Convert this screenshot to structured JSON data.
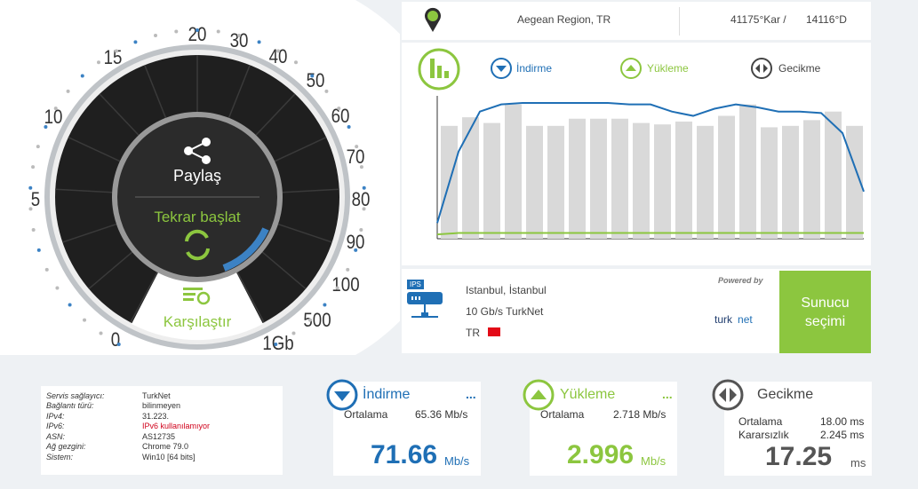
{
  "location": {
    "region": "Aegean Region, TR",
    "lat": "41175°Kar /",
    "lon": "14116°D"
  },
  "gauge": {
    "labels": [
      "0",
      "5",
      "10",
      "15",
      "20",
      "30",
      "40",
      "50",
      "60",
      "70",
      "80",
      "90",
      "100",
      "500",
      "1Gb"
    ],
    "share": "Paylaş",
    "restart": "Tekrar başlat",
    "compare": "Karşılaştır"
  },
  "legend": {
    "download": "İndirme",
    "upload": "Yükleme",
    "latency": "Gecikme"
  },
  "graph": {
    "ylim": [
      0,
      100
    ],
    "bars": [
      79,
      85,
      81,
      94,
      79,
      79,
      84,
      84,
      84,
      81,
      80,
      82,
      79,
      86,
      94,
      78,
      79,
      83,
      89,
      79
    ],
    "download": [
      11,
      61,
      89,
      94,
      95,
      95,
      95,
      95,
      95,
      94,
      94,
      89,
      86,
      91,
      94,
      92,
      89,
      89,
      88,
      74,
      33
    ],
    "upload": [
      3,
      4,
      4,
      4,
      4,
      4,
      4,
      4,
      4,
      4,
      4,
      4,
      4,
      4,
      4,
      4,
      4,
      4,
      4,
      4,
      4
    ]
  },
  "server": {
    "badge": "IPS",
    "city": "Istanbul, İstanbul",
    "provider": "10 Gb/s TurkNet",
    "country": "TR",
    "powered": "Powered by",
    "logo_a": "turk",
    "logo_b": "net",
    "button": "Sunucu seçimi"
  },
  "info": {
    "rows": [
      [
        "Servis sağlayıcı:",
        "TurkNet"
      ],
      [
        "Bağlantı türü:",
        "bilinmeyen"
      ],
      [
        "IPv4:",
        "31.223."
      ],
      [
        "IPv6:",
        "IPv6 kullanılamıyor"
      ],
      [
        "ASN:",
        "AS12735"
      ],
      [
        "Ağ gezgini:",
        "Chrome 79.0"
      ],
      [
        "Sistem:",
        "Win10 [64 bits]"
      ]
    ]
  },
  "results": {
    "download": {
      "title": "İndirme",
      "more": "...",
      "avg_label": "Ortalama",
      "avg": "65.36 Mb/s",
      "value": "71.66",
      "unit": "Mb/s"
    },
    "upload": {
      "title": "Yükleme",
      "more": "...",
      "avg_label": "Ortalama",
      "avg": "2.718 Mb/s",
      "value": "2.996",
      "unit": "Mb/s"
    },
    "latency": {
      "title": "Gecikme",
      "avg_label": "Ortalama",
      "avg": "18.00 ms",
      "jitter_label": "Kararsızlık",
      "jitter": "2.245 ms",
      "value": "17.25",
      "unit": "ms"
    }
  }
}
